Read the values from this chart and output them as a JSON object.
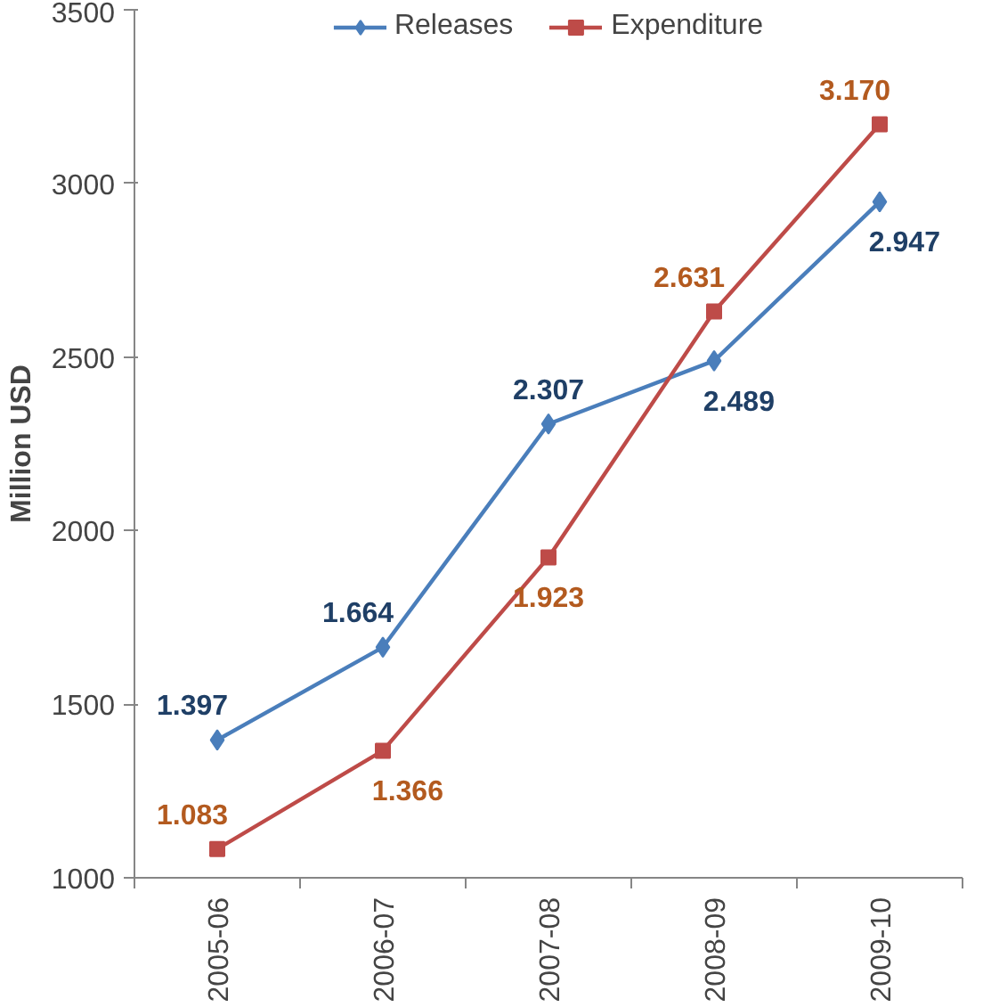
{
  "chart_data": {
    "type": "line",
    "ylabel": "Million USD",
    "categories": [
      "2005-06",
      "2006-07",
      "2007-08",
      "2008-09",
      "2009-10"
    ],
    "series": [
      {
        "name": "Releases",
        "color": "#4a7ebb",
        "marker": "diamond",
        "values": [
          1397,
          1664,
          2307,
          2489,
          2947
        ],
        "value_labels": [
          "1.397",
          "1.664",
          "2.307",
          "2.489",
          "2.947"
        ]
      },
      {
        "name": "Expenditure",
        "color": "#be4b48",
        "marker": "square",
        "values": [
          1083,
          1366,
          1923,
          2631,
          3170
        ],
        "value_labels": [
          "1.083",
          "1.366",
          "1.923",
          "2.631",
          "3.170"
        ]
      }
    ],
    "ylim": [
      1000,
      3500
    ],
    "yticks": [
      1000,
      1500,
      2000,
      2500,
      3000,
      3500
    ],
    "grid": false,
    "legend": "top"
  }
}
